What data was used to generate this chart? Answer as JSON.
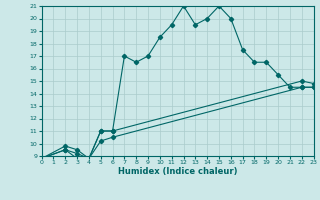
{
  "xlabel": "Humidex (Indice chaleur)",
  "bg_color": "#cce8e8",
  "grid_color": "#aacccc",
  "line_color": "#006666",
  "x_min": 0,
  "x_max": 23,
  "y_min": 9,
  "y_max": 21,
  "line1_x": [
    0,
    2,
    3,
    4,
    5,
    6,
    7,
    8,
    9,
    10,
    11,
    12,
    13,
    14,
    15,
    16,
    17,
    18,
    19,
    20,
    21,
    22,
    23
  ],
  "line1_y": [
    8.8,
    9.5,
    8.8,
    8.8,
    11.0,
    11.0,
    17.0,
    16.5,
    17.0,
    18.5,
    19.5,
    21.0,
    19.5,
    20.0,
    21.0,
    20.0,
    17.5,
    16.5,
    16.5,
    15.5,
    14.5,
    14.5,
    14.5
  ],
  "line2_x": [
    0,
    2,
    3,
    4,
    5,
    6,
    22,
    23
  ],
  "line2_y": [
    8.8,
    9.8,
    9.5,
    8.8,
    11.0,
    11.0,
    15.0,
    14.8
  ],
  "line3_x": [
    0,
    2,
    3,
    4,
    5,
    6,
    22,
    23
  ],
  "line3_y": [
    8.8,
    9.5,
    9.2,
    8.8,
    10.2,
    10.5,
    14.5,
    14.5
  ],
  "xticks": [
    0,
    1,
    2,
    3,
    4,
    5,
    6,
    7,
    8,
    9,
    10,
    11,
    12,
    13,
    14,
    15,
    16,
    17,
    18,
    19,
    20,
    21,
    22,
    23
  ],
  "yticks": [
    9,
    10,
    11,
    12,
    13,
    14,
    15,
    16,
    17,
    18,
    19,
    20,
    21
  ]
}
